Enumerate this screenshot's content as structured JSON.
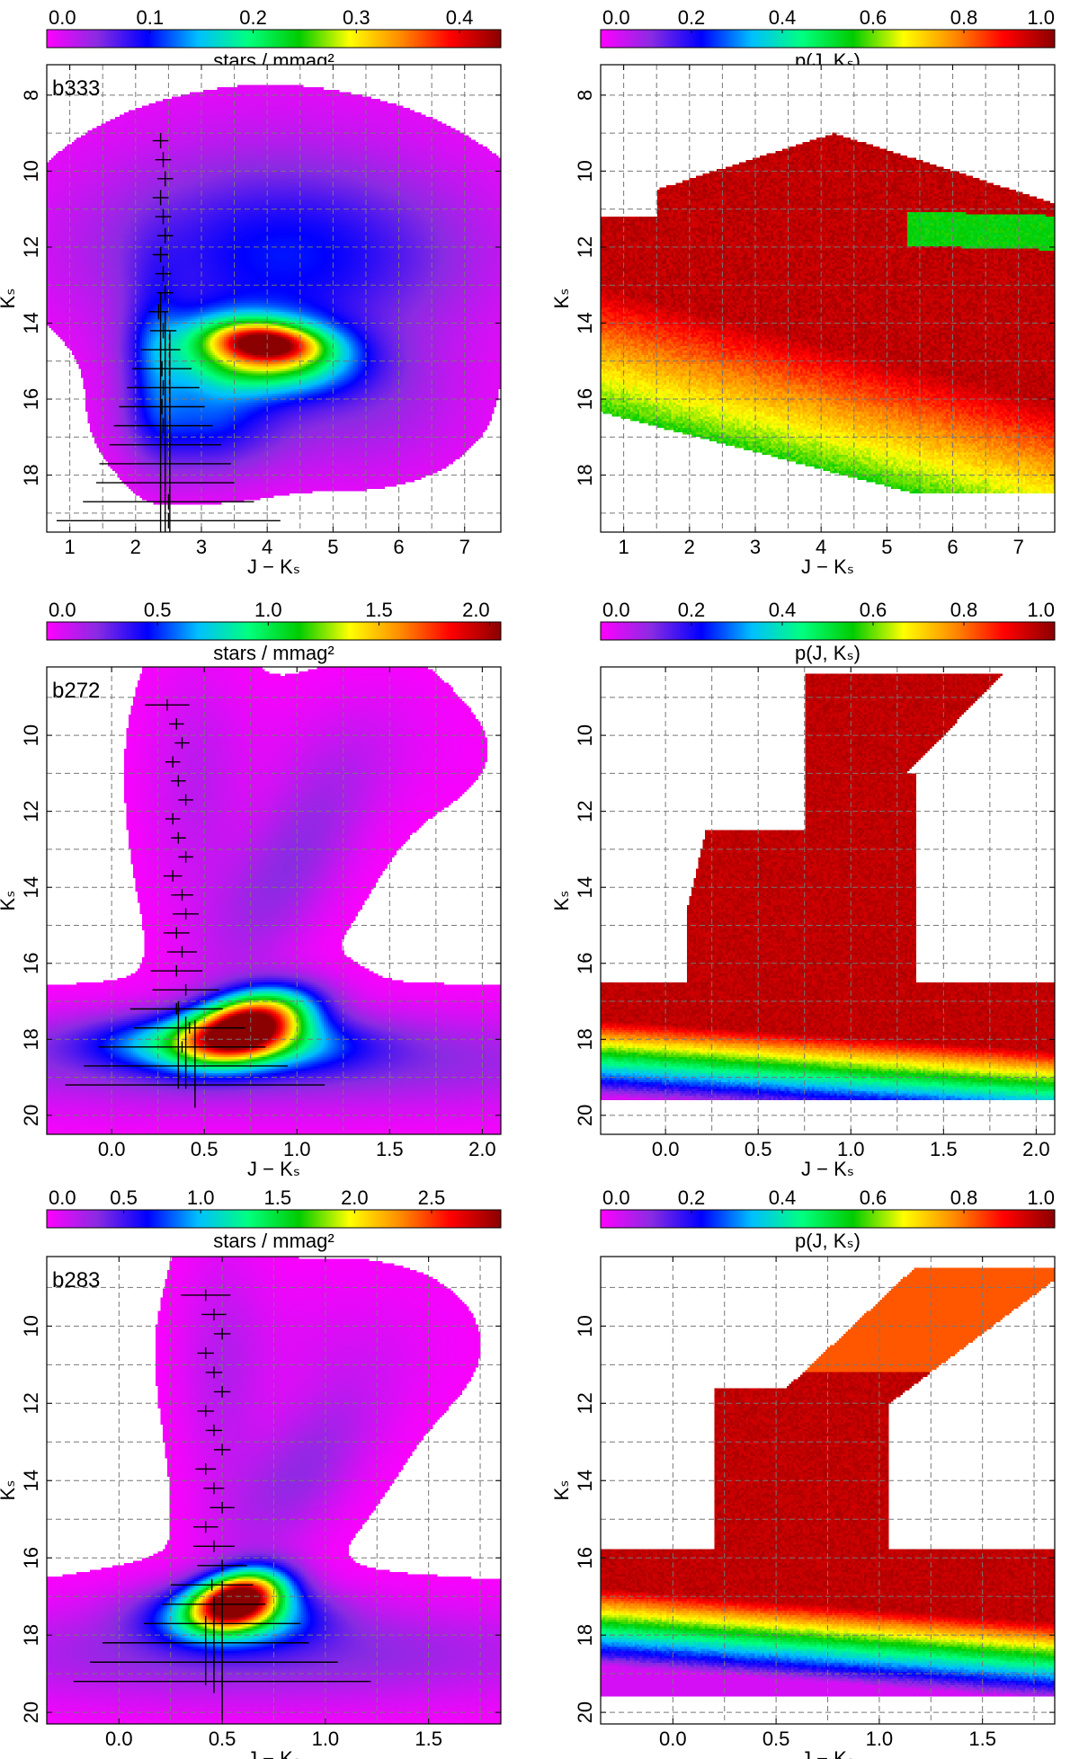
{
  "figure": {
    "colormap": [
      "#ff00ff",
      "#8a2be2",
      "#0000ff",
      "#00bfff",
      "#00ff7f",
      "#00cc00",
      "#ffff00",
      "#ff8c00",
      "#ff0000",
      "#8b0000"
    ],
    "gridColor": "#777777"
  },
  "chart_data": [
    {
      "type": "heatmap",
      "name": "b333-density",
      "field": "b333",
      "label": "b333",
      "colorbar_label": "stars / mmag²",
      "colorbar_ticks": [
        "0.0",
        "0.1",
        "0.2",
        "0.3",
        "0.4"
      ],
      "colorbar_range": [
        0,
        0.44
      ],
      "xlabel": "J − Kₛ",
      "ylabel": "Kₛ",
      "xlim": [
        0.65,
        7.55
      ],
      "ylim": [
        19.5,
        7.2
      ],
      "xticks": [
        1,
        2,
        3,
        4,
        5,
        6,
        7
      ],
      "yticks": [
        8,
        10,
        12,
        14,
        16,
        18
      ],
      "xgrid": [
        1,
        1.5,
        2,
        2.5,
        3,
        3.5,
        4,
        4.5,
        5,
        5.5,
        6,
        6.5,
        7
      ],
      "ygrid": [
        8,
        9,
        10,
        11,
        12,
        13,
        14,
        15,
        16,
        17,
        18,
        19
      ],
      "error_bars": [
        {
          "x": 2.38,
          "y": 9.2,
          "xerr": 0.12,
          "yerr": 0.2
        },
        {
          "x": 2.42,
          "y": 9.7,
          "xerr": 0.12,
          "yerr": 0.2
        },
        {
          "x": 2.45,
          "y": 10.2,
          "xerr": 0.12,
          "yerr": 0.2
        },
        {
          "x": 2.38,
          "y": 10.7,
          "xerr": 0.12,
          "yerr": 0.2
        },
        {
          "x": 2.42,
          "y": 11.2,
          "xerr": 0.12,
          "yerr": 0.2
        },
        {
          "x": 2.45,
          "y": 11.7,
          "xerr": 0.12,
          "yerr": 0.2
        },
        {
          "x": 2.38,
          "y": 12.2,
          "xerr": 0.12,
          "yerr": 0.2
        },
        {
          "x": 2.42,
          "y": 12.7,
          "xerr": 0.12,
          "yerr": 0.2
        },
        {
          "x": 2.45,
          "y": 13.2,
          "xerr": 0.12,
          "yerr": 0.2
        },
        {
          "x": 2.35,
          "y": 13.7,
          "xerr": 0.15,
          "yerr": 0.2
        },
        {
          "x": 2.42,
          "y": 14.2,
          "xerr": 0.2,
          "yerr": 0.2
        },
        {
          "x": 2.38,
          "y": 14.7,
          "xerr": 0.3,
          "yerr": 0.2
        },
        {
          "x": 2.4,
          "y": 15.2,
          "xerr": 0.45,
          "yerr": 0.2
        },
        {
          "x": 2.42,
          "y": 15.7,
          "xerr": 0.55,
          "yerr": 0.2
        },
        {
          "x": 2.4,
          "y": 16.2,
          "xerr": 0.65,
          "yerr": 0.2
        },
        {
          "x": 2.42,
          "y": 16.7,
          "xerr": 0.75,
          "yerr": 0.2
        },
        {
          "x": 2.45,
          "y": 17.2,
          "xerr": 0.85,
          "yerr": 0.2
        },
        {
          "x": 2.45,
          "y": 17.7,
          "xerr": 1.0,
          "yerr": 0.2
        },
        {
          "x": 2.45,
          "y": 18.2,
          "xerr": 1.05,
          "yerr": 0.2
        },
        {
          "x": 2.5,
          "y": 18.7,
          "xerr": 1.3,
          "yerr": 0.2
        },
        {
          "x": 2.5,
          "y": 19.2,
          "xerr": 1.7,
          "yerr": 0.2
        }
      ],
      "vlines": [
        {
          "x": 2.38,
          "y0": 13.2,
          "y1": 19.5
        },
        {
          "x": 2.45,
          "y0": 13.7,
          "y1": 19.5
        },
        {
          "x": 2.52,
          "y0": 14.2,
          "y1": 19.5
        }
      ]
    },
    {
      "type": "heatmap",
      "name": "b333-probability",
      "field": "b333p",
      "label": "",
      "colorbar_label": "p(J, Kₛ)",
      "colorbar_ticks": [
        "0.0",
        "0.2",
        "0.4",
        "0.6",
        "0.8",
        "1.0"
      ],
      "colorbar_range": [
        0,
        1
      ],
      "xlabel": "J − Kₛ",
      "ylabel": "Kₛ",
      "xlim": [
        0.65,
        7.55
      ],
      "ylim": [
        19.5,
        7.2
      ],
      "xticks": [
        1,
        2,
        3,
        4,
        5,
        6,
        7
      ],
      "yticks": [
        8,
        10,
        12,
        14,
        16,
        18
      ],
      "xgrid": [
        1,
        1.5,
        2,
        2.5,
        3,
        3.5,
        4,
        4.5,
        5,
        5.5,
        6,
        6.5,
        7
      ],
      "ygrid": [
        8,
        9,
        10,
        11,
        12,
        13,
        14,
        15,
        16,
        17,
        18,
        19
      ],
      "error_bars": [],
      "vlines": []
    },
    {
      "type": "heatmap",
      "name": "b272-density",
      "field": "b272",
      "label": "b272",
      "colorbar_label": "stars / mmag²",
      "colorbar_ticks": [
        "0.0",
        "0.5",
        "1.0",
        "1.5",
        "2.0"
      ],
      "colorbar_range": [
        0,
        2.05
      ],
      "xlabel": "J − Kₛ",
      "ylabel": "Kₛ",
      "xlim": [
        -0.35,
        2.1
      ],
      "ylim": [
        20.5,
        8.2
      ],
      "xticks": [
        0.0,
        0.5,
        1.0,
        1.5,
        2.0
      ],
      "yticks": [
        10,
        12,
        14,
        16,
        18,
        20
      ],
      "xgrid": [
        0,
        0.25,
        0.5,
        0.75,
        1,
        1.25,
        1.5,
        1.75,
        2
      ],
      "ygrid": [
        9,
        10,
        11,
        12,
        13,
        14,
        15,
        16,
        17,
        18,
        19,
        20
      ],
      "error_bars": [
        {
          "x": 0.3,
          "y": 9.2,
          "xerr": 0.12,
          "yerr": 0.15
        },
        {
          "x": 0.35,
          "y": 9.7,
          "xerr": 0.04,
          "yerr": 0.15
        },
        {
          "x": 0.38,
          "y": 10.2,
          "xerr": 0.04,
          "yerr": 0.15
        },
        {
          "x": 0.33,
          "y": 10.7,
          "xerr": 0.04,
          "yerr": 0.15
        },
        {
          "x": 0.36,
          "y": 11.2,
          "xerr": 0.04,
          "yerr": 0.15
        },
        {
          "x": 0.4,
          "y": 11.7,
          "xerr": 0.04,
          "yerr": 0.15
        },
        {
          "x": 0.33,
          "y": 12.2,
          "xerr": 0.04,
          "yerr": 0.15
        },
        {
          "x": 0.36,
          "y": 12.7,
          "xerr": 0.04,
          "yerr": 0.15
        },
        {
          "x": 0.4,
          "y": 13.2,
          "xerr": 0.04,
          "yerr": 0.15
        },
        {
          "x": 0.33,
          "y": 13.7,
          "xerr": 0.05,
          "yerr": 0.15
        },
        {
          "x": 0.38,
          "y": 14.2,
          "xerr": 0.06,
          "yerr": 0.15
        },
        {
          "x": 0.4,
          "y": 14.7,
          "xerr": 0.07,
          "yerr": 0.15
        },
        {
          "x": 0.35,
          "y": 15.2,
          "xerr": 0.07,
          "yerr": 0.15
        },
        {
          "x": 0.38,
          "y": 15.7,
          "xerr": 0.08,
          "yerr": 0.15
        },
        {
          "x": 0.35,
          "y": 16.2,
          "xerr": 0.14,
          "yerr": 0.15
        },
        {
          "x": 0.4,
          "y": 16.7,
          "xerr": 0.18,
          "yerr": 0.15
        },
        {
          "x": 0.35,
          "y": 17.2,
          "xerr": 0.25,
          "yerr": 0.15
        },
        {
          "x": 0.42,
          "y": 17.7,
          "xerr": 0.3,
          "yerr": 0.15
        },
        {
          "x": 0.38,
          "y": 18.2,
          "xerr": 0.45,
          "yerr": 0.15
        },
        {
          "x": 0.4,
          "y": 18.7,
          "xerr": 0.55,
          "yerr": 0.15
        },
        {
          "x": 0.45,
          "y": 19.2,
          "xerr": 0.7,
          "yerr": 0.15
        }
      ],
      "vlines": [
        {
          "x": 0.36,
          "y0": 17.0,
          "y1": 19.3
        },
        {
          "x": 0.4,
          "y0": 17.4,
          "y1": 19.3
        },
        {
          "x": 0.45,
          "y0": 17.5,
          "y1": 19.8
        }
      ]
    },
    {
      "type": "heatmap",
      "name": "b272-probability",
      "field": "b272p",
      "label": "",
      "colorbar_label": "p(J, Kₛ)",
      "colorbar_ticks": [
        "0.0",
        "0.2",
        "0.4",
        "0.6",
        "0.8",
        "1.0"
      ],
      "colorbar_range": [
        0,
        1
      ],
      "xlabel": "J − Kₛ",
      "ylabel": "Kₛ",
      "xlim": [
        -0.35,
        2.1
      ],
      "ylim": [
        20.5,
        8.2
      ],
      "xticks": [
        0.0,
        0.5,
        1.0,
        1.5,
        2.0
      ],
      "yticks": [
        10,
        12,
        14,
        16,
        18,
        20
      ],
      "xgrid": [
        0,
        0.25,
        0.5,
        0.75,
        1,
        1.25,
        1.5,
        1.75,
        2
      ],
      "ygrid": [
        9,
        10,
        11,
        12,
        13,
        14,
        15,
        16,
        17,
        18,
        19,
        20
      ],
      "error_bars": [],
      "vlines": []
    },
    {
      "type": "heatmap",
      "name": "b283-density",
      "field": "b283",
      "label": "b283",
      "colorbar_label": "stars / mmag²",
      "colorbar_ticks": [
        "0.0",
        "0.5",
        "1.0",
        "1.5",
        "2.0",
        "2.5"
      ],
      "colorbar_range": [
        0,
        2.95
      ],
      "xlabel": "J − Kₛ",
      "ylabel": "Kₛ",
      "xlim": [
        -0.35,
        1.85
      ],
      "ylim": [
        20.3,
        8.2
      ],
      "xticks": [
        0.0,
        0.5,
        1.0,
        1.5
      ],
      "yticks": [
        10,
        12,
        14,
        16,
        18,
        20
      ],
      "xgrid": [
        0,
        0.25,
        0.5,
        0.75,
        1,
        1.25,
        1.5,
        1.75
      ],
      "ygrid": [
        9,
        10,
        11,
        12,
        13,
        14,
        15,
        16,
        17,
        18,
        19,
        20
      ],
      "error_bars": [
        {
          "x": 0.42,
          "y": 9.2,
          "xerr": 0.12,
          "yerr": 0.15
        },
        {
          "x": 0.46,
          "y": 9.7,
          "xerr": 0.06,
          "yerr": 0.15
        },
        {
          "x": 0.5,
          "y": 10.2,
          "xerr": 0.04,
          "yerr": 0.15
        },
        {
          "x": 0.42,
          "y": 10.7,
          "xerr": 0.04,
          "yerr": 0.15
        },
        {
          "x": 0.46,
          "y": 11.2,
          "xerr": 0.04,
          "yerr": 0.15
        },
        {
          "x": 0.5,
          "y": 11.7,
          "xerr": 0.04,
          "yerr": 0.15
        },
        {
          "x": 0.42,
          "y": 12.2,
          "xerr": 0.04,
          "yerr": 0.15
        },
        {
          "x": 0.46,
          "y": 12.7,
          "xerr": 0.04,
          "yerr": 0.15
        },
        {
          "x": 0.5,
          "y": 13.2,
          "xerr": 0.04,
          "yerr": 0.15
        },
        {
          "x": 0.42,
          "y": 13.7,
          "xerr": 0.05,
          "yerr": 0.15
        },
        {
          "x": 0.46,
          "y": 14.2,
          "xerr": 0.05,
          "yerr": 0.15
        },
        {
          "x": 0.5,
          "y": 14.7,
          "xerr": 0.06,
          "yerr": 0.15
        },
        {
          "x": 0.42,
          "y": 15.2,
          "xerr": 0.06,
          "yerr": 0.15
        },
        {
          "x": 0.46,
          "y": 15.7,
          "xerr": 0.1,
          "yerr": 0.15
        },
        {
          "x": 0.5,
          "y": 16.2,
          "xerr": 0.12,
          "yerr": 0.15
        },
        {
          "x": 0.45,
          "y": 16.7,
          "xerr": 0.2,
          "yerr": 0.15
        },
        {
          "x": 0.46,
          "y": 17.2,
          "xerr": 0.25,
          "yerr": 0.15
        },
        {
          "x": 0.5,
          "y": 17.7,
          "xerr": 0.38,
          "yerr": 0.15
        },
        {
          "x": 0.42,
          "y": 18.2,
          "xerr": 0.5,
          "yerr": 0.15
        },
        {
          "x": 0.46,
          "y": 18.7,
          "xerr": 0.6,
          "yerr": 0.15
        },
        {
          "x": 0.5,
          "y": 19.2,
          "xerr": 0.72,
          "yerr": 0.15
        }
      ],
      "vlines": [
        {
          "x": 0.42,
          "y0": 17.5,
          "y1": 19.3
        },
        {
          "x": 0.46,
          "y0": 17.0,
          "y1": 19.5
        },
        {
          "x": 0.5,
          "y0": 16.6,
          "y1": 20.2
        }
      ]
    },
    {
      "type": "heatmap",
      "name": "b283-probability",
      "field": "b283p",
      "label": "",
      "colorbar_label": "p(J, Kₛ)",
      "colorbar_ticks": [
        "0.0",
        "0.2",
        "0.4",
        "0.6",
        "0.8",
        "1.0"
      ],
      "colorbar_range": [
        0,
        1
      ],
      "xlabel": "J − Kₛ",
      "ylabel": "Kₛ",
      "xlim": [
        -0.35,
        1.85
      ],
      "ylim": [
        20.3,
        8.2
      ],
      "xticks": [
        0.0,
        0.5,
        1.0,
        1.5
      ],
      "yticks": [
        10,
        12,
        14,
        16,
        18,
        20
      ],
      "xgrid": [
        0,
        0.25,
        0.5,
        0.75,
        1,
        1.25,
        1.5,
        1.75
      ],
      "ygrid": [
        9,
        10,
        11,
        12,
        13,
        14,
        15,
        16,
        17,
        18,
        19,
        20
      ],
      "error_bars": [],
      "vlines": []
    }
  ]
}
